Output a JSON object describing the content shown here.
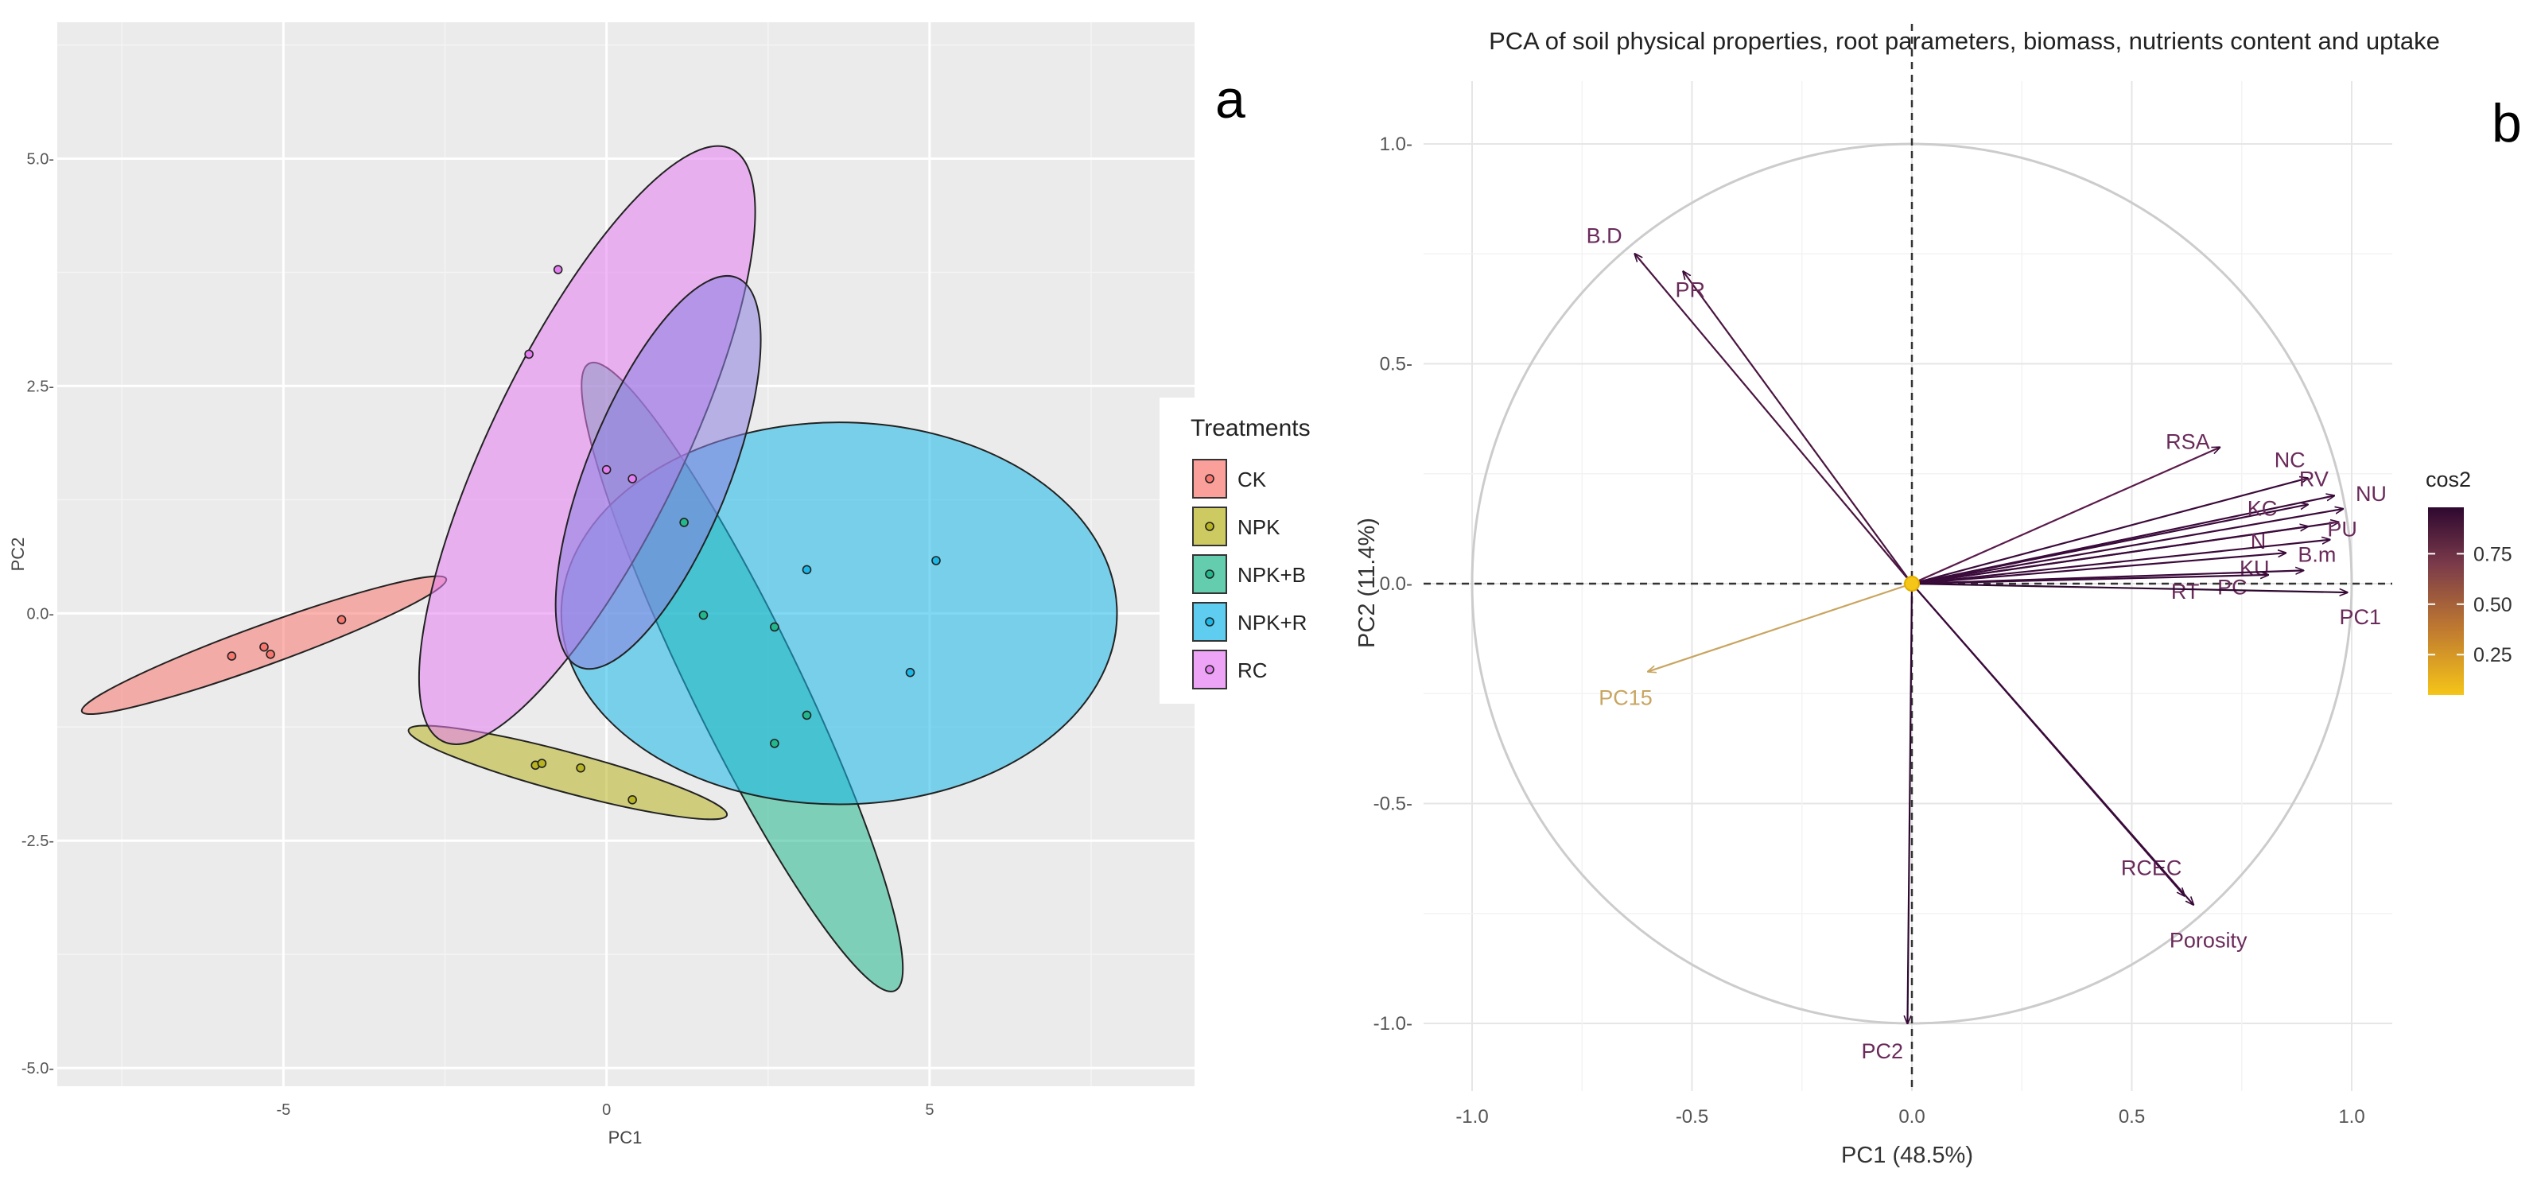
{
  "chart_data": [
    {
      "type": "scatter",
      "panel_label": "a",
      "title": "",
      "xlabel": "PC1",
      "ylabel": "PC2",
      "xlim": [
        -8.5,
        9.1
      ],
      "ylim": [
        -5.2,
        6.5
      ],
      "x_ticks": [
        -5,
        0,
        5
      ],
      "x_tick_labels": [
        "-5",
        "0",
        "5"
      ],
      "y_ticks": [
        -5,
        -2.5,
        0,
        2.5,
        5
      ],
      "y_tick_labels": [
        "-5.0-",
        "-2.5-",
        "0.0-",
        "2.5-",
        "5.0-"
      ],
      "grid": "on",
      "legend": {
        "title": "Treatments",
        "placement": "right",
        "entries": [
          "CK",
          "NPK",
          "NPK+B",
          "NPK+R",
          "RC"
        ]
      },
      "series": [
        {
          "name": "CK",
          "color": "#f8766d",
          "points": [
            [
              -5.8,
              -0.47
            ],
            [
              -5.3,
              -0.37
            ],
            [
              -5.2,
              -0.45
            ],
            [
              -4.1,
              -0.07
            ]
          ],
          "ellipse": {
            "center": [
              -5.3,
              -0.35
            ],
            "semi_axes": [
              3.0,
              0.22
            ],
            "angle_deg": 20
          }
        },
        {
          "name": "NPK",
          "color": "#b8b320",
          "points": [
            [
              -1.1,
              -1.67
            ],
            [
              -1.0,
              -1.65
            ],
            [
              -0.4,
              -1.7
            ],
            [
              0.4,
              -2.05
            ]
          ],
          "ellipse": {
            "center": [
              -0.6,
              -1.75
            ],
            "semi_axes": [
              2.55,
              0.22
            ],
            "angle_deg": -15
          }
        },
        {
          "name": "NPK+B",
          "color": "#22b88c",
          "points": [
            [
              1.2,
              1.0
            ],
            [
              1.5,
              -0.02
            ],
            [
              2.6,
              -0.15
            ],
            [
              2.6,
              -1.43
            ],
            [
              3.1,
              -1.12
            ]
          ],
          "ellipse": {
            "center": [
              2.1,
              -0.7
            ],
            "semi_axes": [
              5.4,
              0.6
            ],
            "angle_deg": -64
          }
        },
        {
          "name": "NPK+R",
          "color": "#1ab8e8",
          "points": [
            [
              3.1,
              0.48
            ],
            [
              4.7,
              -0.65
            ],
            [
              5.1,
              0.58
            ]
          ],
          "ellipse": {
            "center": [
              3.6,
              0.0
            ],
            "semi_axes": [
              4.3,
              2.1
            ],
            "angle_deg": 0
          }
        },
        {
          "name": "RC",
          "color": "#e57ef2",
          "points": [
            [
              -0.75,
              3.78
            ],
            [
              -1.2,
              2.85
            ],
            [
              0.0,
              1.58
            ],
            [
              0.4,
              1.48
            ]
          ],
          "ellipse": {
            "center": [
              -0.3,
              1.85
            ],
            "semi_axes": [
              5.1,
              1.05
            ],
            "angle_deg": 64
          }
        }
      ],
      "inner_ellipse": {
        "center": [
          0.8,
          1.55
        ],
        "semi_axes": [
          3.25,
          0.78
        ],
        "angle_deg": 68
      }
    },
    {
      "type": "biplot",
      "panel_label": "b",
      "title": "PCA of soil physical properties, root parameters, biomass, nutrients content and uptake",
      "xlabel": "PC1 (48.5%)",
      "ylabel": "PC2 (11.4%)",
      "xlim": [
        -1.1,
        1.1
      ],
      "ylim": [
        -1.1,
        1.1
      ],
      "x_ticks": [
        -1.0,
        -0.5,
        0.0,
        0.5,
        1.0
      ],
      "x_tick_labels": [
        "-1.0",
        "-0.5",
        "0.0",
        "0.5",
        "1.0"
      ],
      "y_ticks": [
        -1.0,
        -0.5,
        0.0,
        0.5,
        1.0
      ],
      "y_tick_labels": [
        "-1.0-",
        "-0.5-",
        "0.0-",
        "0.5-",
        "1.0-"
      ],
      "grid": "on",
      "unit_circle": true,
      "colorbar": {
        "title": "cos2",
        "ticks": [
          0.25,
          0.5,
          0.75
        ],
        "tick_labels": [
          "0.25",
          "0.50",
          "0.75"
        ],
        "colors": [
          "#f5c518",
          "#c07a30",
          "#7a3a4a",
          "#2e0830"
        ]
      },
      "vectors": [
        {
          "name": "B.D",
          "x": -0.63,
          "y": 0.75,
          "color": "#4a1540",
          "label": "B.D"
        },
        {
          "name": "PR",
          "x": -0.52,
          "y": 0.71,
          "color": "#4a1540",
          "label": "PR"
        },
        {
          "name": "RSA",
          "x": 0.7,
          "y": 0.31,
          "color": "#5a1a4a",
          "label": "RSA"
        },
        {
          "name": "NC",
          "x": 0.9,
          "y": 0.24,
          "color": "#3a0a3a",
          "label": "NC"
        },
        {
          "name": "RV",
          "x": 0.96,
          "y": 0.2,
          "color": "#3a0a3a",
          "label": "RV"
        },
        {
          "name": "NU",
          "x": 0.98,
          "y": 0.17,
          "color": "#3a0a3a",
          "label": "NU"
        },
        {
          "name": "KC",
          "x": 0.9,
          "y": 0.18,
          "color": "#3a0a3a",
          "label": "KC"
        },
        {
          "name": "PU",
          "x": 0.97,
          "y": 0.14,
          "color": "#3a0a3a",
          "label": "PU"
        },
        {
          "name": "N",
          "x": 0.9,
          "y": 0.13,
          "color": "#3a0a3a",
          "label": "N"
        },
        {
          "name": "B.m",
          "x": 0.95,
          "y": 0.1,
          "color": "#3a0a3a",
          "label": "B.m"
        },
        {
          "name": "KU",
          "x": 0.85,
          "y": 0.07,
          "color": "#3a0a3a",
          "label": "KU"
        },
        {
          "name": "RT",
          "x": 0.81,
          "y": 0.02,
          "color": "#3a0a3a",
          "label": "RT"
        },
        {
          "name": "PC",
          "x": 0.89,
          "y": 0.03,
          "color": "#3a0a3a",
          "label": "PC"
        },
        {
          "name": "PC1",
          "x": 0.99,
          "y": -0.02,
          "color": "#2e0830",
          "label": "PC1"
        },
        {
          "name": "PC15",
          "x": -0.6,
          "y": -0.2,
          "color": "#c8a560",
          "label": "PC15"
        },
        {
          "name": "PC2",
          "x": -0.01,
          "y": -1.0,
          "color": "#2e0830",
          "label": "PC2"
        },
        {
          "name": "RCEC",
          "x": 0.62,
          "y": -0.71,
          "color": "#3a0a3a",
          "label": "RCEC"
        },
        {
          "name": "Porosity",
          "x": 0.64,
          "y": -0.73,
          "color": "#3a0a3a",
          "label": "Porosity"
        }
      ]
    }
  ]
}
